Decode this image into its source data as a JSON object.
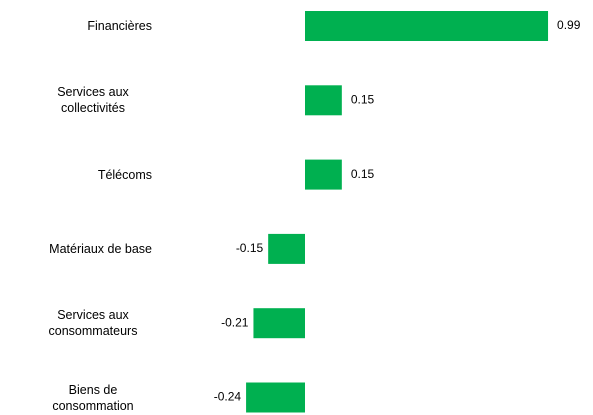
{
  "chart_data": {
    "type": "bar",
    "orientation": "horizontal",
    "categories": [
      "Financières",
      "Services aux collectivités",
      "Télécoms",
      "Matériaux de base",
      "Services aux consommateurs",
      "Biens de consommation"
    ],
    "values": [
      0.99,
      0.15,
      0.15,
      -0.15,
      -0.21,
      -0.24
    ],
    "color": "#00b050"
  }
}
